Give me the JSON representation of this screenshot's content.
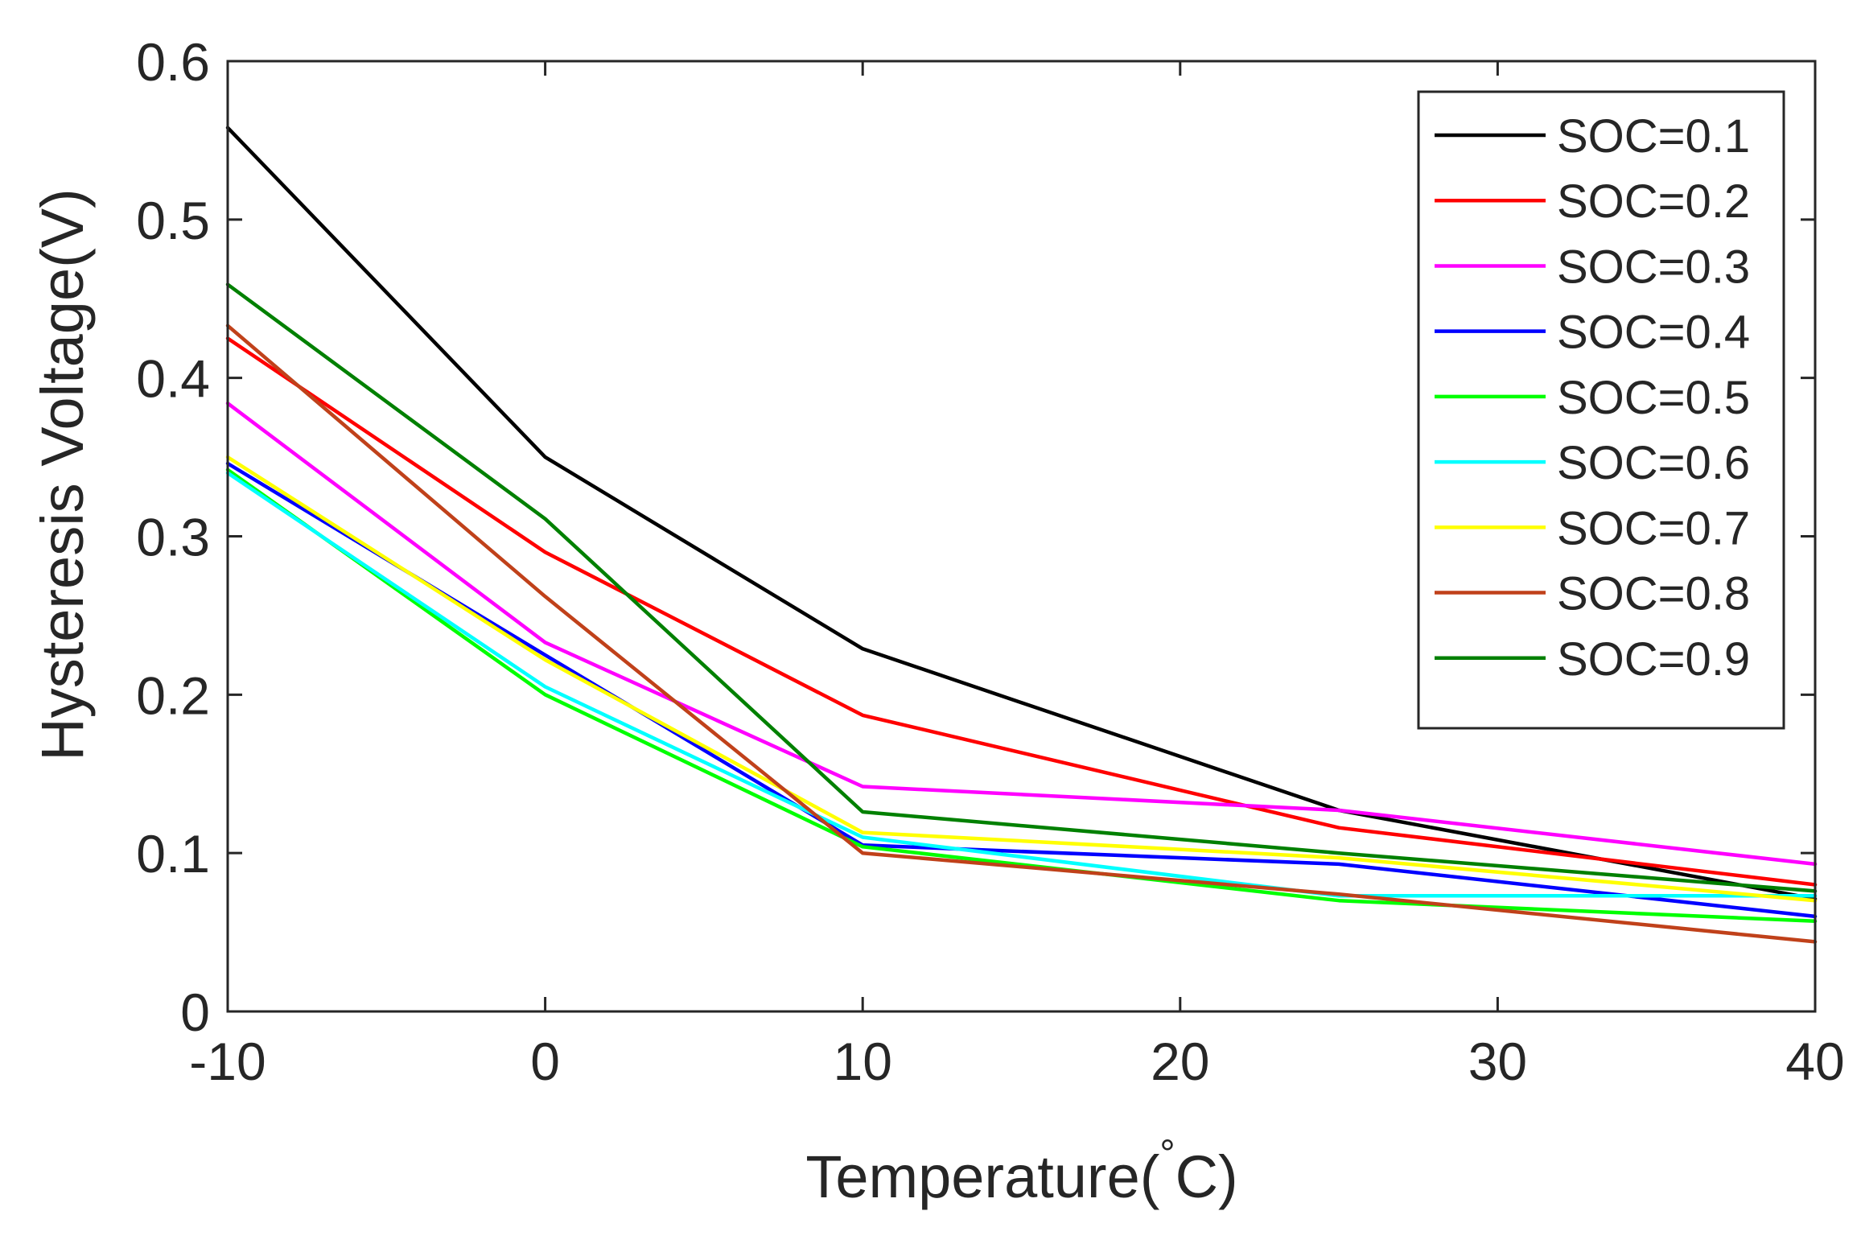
{
  "chart_data": {
    "type": "line",
    "title": "",
    "xlabel": "Temperature(",
    "xlabel_degree": "°",
    "xlabel_unit": "C)",
    "ylabel": "Hysteresis Voltage(V)",
    "xlim": [
      -10,
      40
    ],
    "ylim": [
      0,
      0.6
    ],
    "xticks": [
      -10,
      0,
      10,
      20,
      30,
      40
    ],
    "xtick_labels": [
      "-10",
      "0",
      "10",
      "20",
      "30",
      "40"
    ],
    "yticks": [
      0,
      0.1,
      0.2,
      0.3,
      0.4,
      0.5,
      0.6
    ],
    "ytick_labels": [
      "0",
      "0.1",
      "0.2",
      "0.3",
      "0.4",
      "0.5",
      "0.6"
    ],
    "grid": false,
    "legend_position": "top-right",
    "x": [
      -10,
      0,
      10,
      25,
      40
    ],
    "series": [
      {
        "name": "SOC=0.1",
        "color": "#000000",
        "values": [
          0.558,
          0.35,
          0.229,
          0.127,
          0.071
        ]
      },
      {
        "name": "SOC=0.2",
        "color": "#ff0000",
        "values": [
          0.425,
          0.29,
          0.187,
          0.116,
          0.08
        ]
      },
      {
        "name": "SOC=0.3",
        "color": "#ff00ff",
        "values": [
          0.384,
          0.233,
          0.142,
          0.127,
          0.093
        ]
      },
      {
        "name": "SOC=0.4",
        "color": "#0000ff",
        "values": [
          0.346,
          0.225,
          0.105,
          0.093,
          0.06
        ]
      },
      {
        "name": "SOC=0.5",
        "color": "#00ff00",
        "values": [
          0.342,
          0.2,
          0.104,
          0.07,
          0.057
        ]
      },
      {
        "name": "SOC=0.6",
        "color": "#00ffff",
        "values": [
          0.34,
          0.205,
          0.11,
          0.073,
          0.073
        ]
      },
      {
        "name": "SOC=0.7",
        "color": "#ffff00",
        "values": [
          0.35,
          0.222,
          0.113,
          0.097,
          0.07
        ]
      },
      {
        "name": "SOC=0.8",
        "color": "#c0411a",
        "values": [
          0.433,
          0.262,
          0.1,
          0.074,
          0.044
        ]
      },
      {
        "name": "SOC=0.9",
        "color": "#008000",
        "values": [
          0.459,
          0.311,
          0.126,
          0.1,
          0.076
        ]
      }
    ]
  }
}
